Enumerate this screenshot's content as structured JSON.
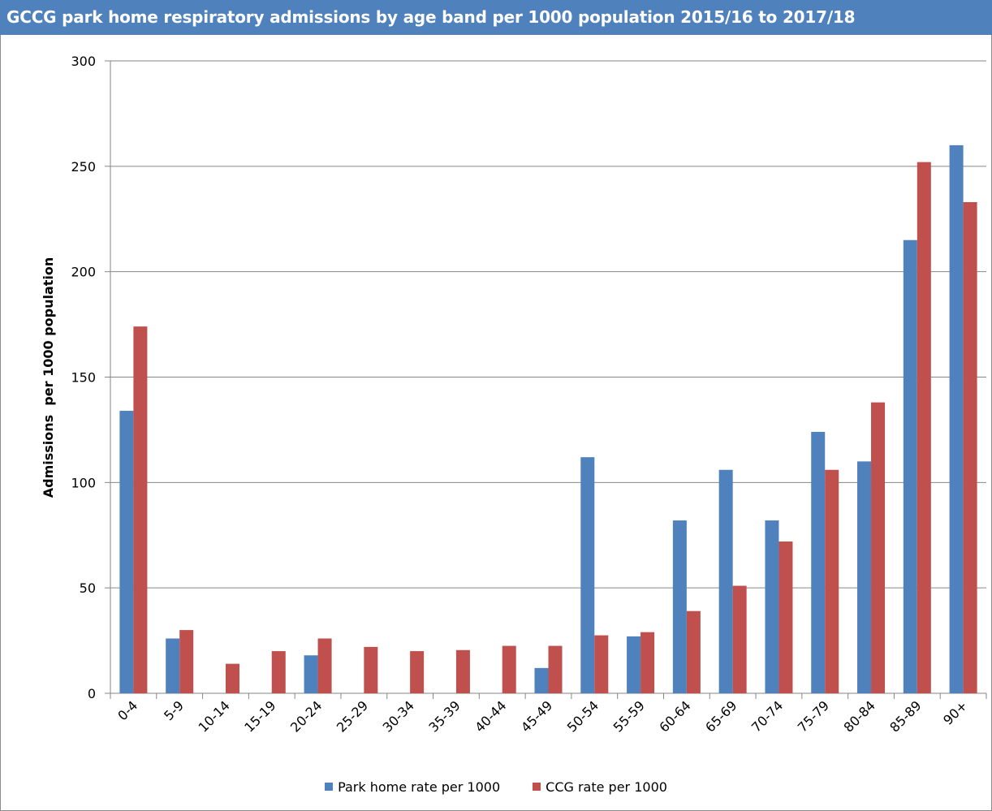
{
  "title": "GCCG park home respiratory admissions by age band per 1000 population 2015/16 to 2017/18",
  "colors": {
    "title_bg": "#4f81bd",
    "series1": "#4f81bd",
    "series2": "#c0504d",
    "grid": "#868686"
  },
  "chart_data": {
    "type": "bar",
    "title": "GCCG park home respiratory admissions by age band per 1000 population 2015/16 to 2017/18",
    "xlabel": "",
    "ylabel": "Admissions  per 1000 population",
    "ylim": [
      0,
      300
    ],
    "yticks": [
      0,
      50,
      100,
      150,
      200,
      250,
      300
    ],
    "grid": true,
    "legend_position": "bottom",
    "categories": [
      "0-4",
      "5-9",
      "10-14",
      "15-19",
      "20-24",
      "25-29",
      "30-34",
      "35-39",
      "40-44",
      "45-49",
      "50-54",
      "55-59",
      "60-64",
      "65-69",
      "70-74",
      "75-79",
      "80-84",
      "85-89",
      "90+"
    ],
    "series": [
      {
        "name": "Park home rate per 1000",
        "color": "#4f81bd",
        "values": [
          134,
          26,
          0,
          0,
          18,
          0,
          0,
          0,
          0,
          12,
          112,
          27,
          82,
          106,
          82,
          124,
          110,
          215,
          260
        ]
      },
      {
        "name": "CCG rate per 1000",
        "color": "#c0504d",
        "values": [
          174,
          30,
          14,
          20,
          26,
          22,
          20,
          20.5,
          22.5,
          22.5,
          27.5,
          29,
          39,
          51,
          72,
          106,
          138,
          252,
          233
        ]
      }
    ]
  }
}
